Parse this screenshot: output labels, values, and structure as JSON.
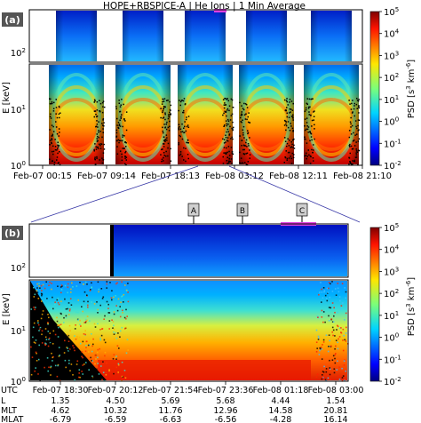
{
  "chart_data": [
    {
      "type": "heatmap",
      "panel_label": "(a)",
      "title": "HOPE+RBSPICE-A  |  He Ions  |  1 Min Average",
      "ylabel": "E [keV]",
      "yscale": "log",
      "y_ticks": [
        "10^0",
        "10^1",
        "10^2"
      ],
      "x_ticks": [
        "Feb-07 00:15",
        "Feb-07 09:14",
        "Feb-07 18:13",
        "Feb-08 03:12",
        "Feb-08 12:11",
        "Feb-08 21:10"
      ],
      "colorbar_label": "PSD [s^3 km^-6]",
      "colorbar_scale": "log",
      "colorbar_ticks": [
        "10^-2",
        "10^-1",
        "10^0",
        "10^1",
        "10^2",
        "10^3",
        "10^4",
        "10^5"
      ],
      "colormap": "jet",
      "passes": 5,
      "highlight_color": "#e040e0"
    },
    {
      "type": "heatmap",
      "panel_label": "(b)",
      "ylabel": "E [keV]",
      "yscale": "log",
      "y_ticks": [
        "10^0",
        "10^1",
        "10^2"
      ],
      "markers": [
        "A",
        "B",
        "C"
      ],
      "highlight_color": "#e040e0",
      "colorbar_label": "PSD [s^3 km^-6]",
      "colorbar_scale": "log",
      "colorbar_ticks": [
        "10^-2",
        "10^-1",
        "10^0",
        "10^1",
        "10^2",
        "10^3",
        "10^4",
        "10^5"
      ],
      "colormap": "jet",
      "ephemeris": {
        "UTC": [
          "Feb-07 18:30",
          "Feb-07 20:12",
          "Feb-07 21:54",
          "Feb-07 23:36",
          "Feb-08 01:18",
          "Feb-08 03:00"
        ],
        "L": [
          "1.35",
          "4.50",
          "5.69",
          "5.68",
          "4.44",
          "1.54"
        ],
        "MLT": [
          "4.62",
          "10.32",
          "11.76",
          "12.96",
          "14.58",
          "20.81"
        ],
        "MLAT": [
          "-6.79",
          "-6.59",
          "-6.63",
          "-6.56",
          "-4.28",
          "16.14"
        ]
      },
      "ephemeris_row_labels": [
        "UTC",
        "L",
        "MLT",
        "MLAT"
      ]
    }
  ]
}
